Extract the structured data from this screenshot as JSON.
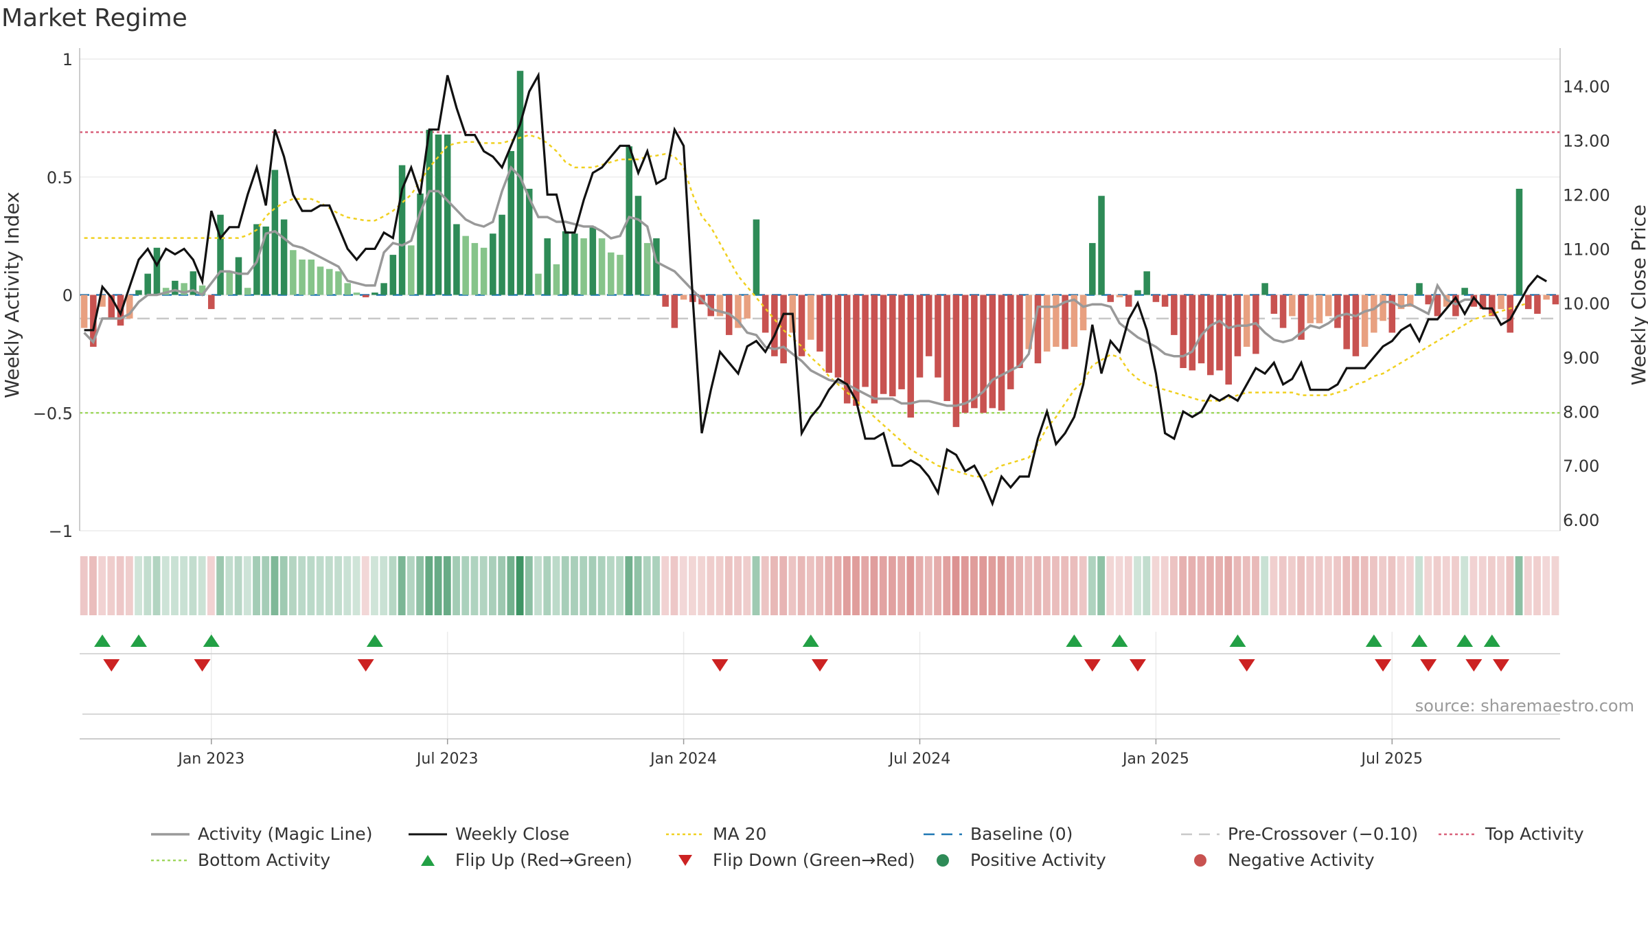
{
  "chart_title": "Market Regime",
  "source_text": "source: sharemaestro.com",
  "colors": {
    "green_strong": "#2e8b57",
    "green_light": "#86c48a",
    "red_strong": "#c85250",
    "red_light": "#e8a080",
    "magic_line": "#999999",
    "close_line": "#111111",
    "ma20": "#f0d020",
    "baseline": "#1f77b4",
    "precross": "#c8c8c8",
    "top_activity": "#d9607a",
    "bottom_activity": "#a0d860",
    "flip_up": "#22a045",
    "flip_down": "#cc2222"
  },
  "chart_data": {
    "type": "bar",
    "title": "Market Regime",
    "left_axis": {
      "label": "Weekly Activity Index",
      "range": [
        -1,
        1
      ],
      "ticks": [
        "1",
        "0.5",
        "0",
        "−0.5",
        "−1"
      ],
      "tick_values": [
        1,
        0.5,
        0,
        -0.5,
        -1
      ]
    },
    "right_axis": {
      "label": "Weekly Close Price",
      "range": [
        5.8,
        14.5
      ],
      "ticks": [
        "14.00",
        "13.00",
        "12.00",
        "11.00",
        "10.00",
        "9.00",
        "8.00",
        "7.00",
        "6.00"
      ],
      "tick_values": [
        14,
        13,
        12,
        11,
        10,
        9,
        8,
        7,
        6
      ]
    },
    "x_ticks": [
      "Jan 2023",
      "Jul 2023",
      "Jan 2024",
      "Jul 2024",
      "Jan 2025",
      "Jul 2025"
    ],
    "x_tick_weeks": [
      14,
      40,
      66,
      92,
      118,
      144
    ],
    "reference_lines": {
      "baseline": 0,
      "pre_crossover": -0.1,
      "top_activity": 0.69,
      "bottom_activity": -0.5
    },
    "grid": true,
    "legend_position": "bottom",
    "activity": [
      -0.14,
      -0.22,
      -0.05,
      -0.1,
      -0.13,
      -0.1,
      0.02,
      0.09,
      0.2,
      0.03,
      0.06,
      0.05,
      0.1,
      0.04,
      -0.06,
      0.34,
      0.1,
      0.16,
      0.03,
      0.3,
      0.29,
      0.53,
      0.32,
      0.19,
      0.15,
      0.15,
      0.12,
      0.11,
      0.1,
      0.05,
      0.01,
      -0.01,
      0.01,
      0.05,
      0.17,
      0.55,
      0.21,
      0.43,
      0.7,
      0.68,
      0.68,
      0.3,
      0.25,
      0.22,
      0.2,
      0.26,
      0.34,
      0.61,
      0.95,
      0.45,
      0.09,
      0.24,
      0.13,
      0.27,
      0.26,
      0.24,
      0.29,
      0.24,
      0.18,
      0.17,
      0.63,
      0.42,
      0.22,
      0.24,
      -0.05,
      -0.14,
      -0.02,
      -0.03,
      -0.04,
      -0.09,
      -0.09,
      -0.17,
      -0.14,
      -0.1,
      0.32,
      -0.16,
      -0.26,
      -0.29,
      -0.16,
      -0.26,
      -0.19,
      -0.24,
      -0.33,
      -0.35,
      -0.46,
      -0.47,
      -0.39,
      -0.46,
      -0.42,
      -0.43,
      -0.4,
      -0.52,
      -0.35,
      -0.26,
      -0.35,
      -0.45,
      -0.56,
      -0.5,
      -0.48,
      -0.5,
      -0.48,
      -0.49,
      -0.4,
      -0.31,
      -0.23,
      -0.29,
      -0.24,
      -0.22,
      -0.23,
      -0.22,
      -0.15,
      0.22,
      0.42,
      -0.03,
      -0.01,
      -0.05,
      0.02,
      0.1,
      -0.03,
      -0.05,
      -0.17,
      -0.31,
      -0.32,
      -0.29,
      -0.34,
      -0.32,
      -0.38,
      -0.26,
      -0.22,
      -0.25,
      0.05,
      -0.08,
      -0.14,
      -0.09,
      -0.19,
      -0.12,
      -0.12,
      -0.09,
      -0.14,
      -0.23,
      -0.26,
      -0.22,
      -0.16,
      -0.11,
      -0.16,
      -0.06,
      -0.05,
      0.05,
      -0.04,
      -0.09,
      -0.05,
      -0.09,
      0.03,
      -0.05,
      -0.06,
      -0.09,
      -0.06,
      -0.16,
      0.45,
      -0.06,
      -0.08,
      -0.02,
      -0.04
    ],
    "magic_line": [
      -0.16,
      -0.2,
      -0.1,
      -0.1,
      -0.1,
      -0.08,
      -0.03,
      0.0,
      0.0,
      0.01,
      0.02,
      0.01,
      0.02,
      0.0,
      0.05,
      0.1,
      0.1,
      0.09,
      0.09,
      0.14,
      0.26,
      0.27,
      0.24,
      0.21,
      0.2,
      0.18,
      0.16,
      0.14,
      0.12,
      0.06,
      0.05,
      0.04,
      0.04,
      0.18,
      0.22,
      0.21,
      0.23,
      0.35,
      0.44,
      0.44,
      0.4,
      0.36,
      0.32,
      0.3,
      0.29,
      0.31,
      0.44,
      0.54,
      0.5,
      0.41,
      0.33,
      0.33,
      0.31,
      0.31,
      0.3,
      0.29,
      0.29,
      0.27,
      0.24,
      0.25,
      0.33,
      0.32,
      0.29,
      0.14,
      0.12,
      0.1,
      0.06,
      0.02,
      -0.02,
      -0.06,
      -0.07,
      -0.08,
      -0.11,
      -0.16,
      -0.17,
      -0.22,
      -0.23,
      -0.22,
      -0.25,
      -0.28,
      -0.32,
      -0.34,
      -0.36,
      -0.37,
      -0.38,
      -0.4,
      -0.42,
      -0.44,
      -0.44,
      -0.44,
      -0.46,
      -0.46,
      -0.45,
      -0.45,
      -0.46,
      -0.47,
      -0.47,
      -0.46,
      -0.44,
      -0.41,
      -0.36,
      -0.34,
      -0.32,
      -0.3,
      -0.25,
      -0.05,
      -0.05,
      -0.05,
      -0.03,
      -0.02,
      -0.05,
      -0.04,
      -0.04,
      -0.05,
      -0.12,
      -0.15,
      -0.18,
      -0.2,
      -0.22,
      -0.25,
      -0.26,
      -0.26,
      -0.24,
      -0.17,
      -0.13,
      -0.11,
      -0.14,
      -0.13,
      -0.13,
      -0.12,
      -0.16,
      -0.19,
      -0.2,
      -0.19,
      -0.16,
      -0.13,
      -0.14,
      -0.12,
      -0.09,
      -0.08,
      -0.09,
      -0.07,
      -0.06,
      -0.03,
      -0.03,
      -0.05,
      -0.04,
      -0.06,
      -0.08,
      0.04,
      -0.02,
      -0.04,
      -0.02,
      -0.02
    ],
    "weekly_close": [
      9.5,
      9.5,
      10.3,
      10.1,
      9.8,
      10.3,
      10.8,
      11.0,
      10.7,
      11.0,
      10.9,
      11.0,
      10.8,
      10.4,
      11.7,
      11.2,
      11.4,
      11.4,
      12.0,
      12.5,
      11.8,
      13.2,
      12.7,
      12.0,
      11.7,
      11.7,
      11.8,
      11.8,
      11.4,
      11.0,
      10.8,
      11.0,
      11.0,
      11.3,
      11.2,
      12.1,
      12.5,
      12.0,
      13.2,
      13.2,
      14.2,
      13.6,
      13.1,
      13.1,
      12.8,
      12.7,
      12.5,
      12.9,
      13.3,
      13.9,
      14.2,
      12.0,
      12.0,
      11.3,
      11.3,
      11.9,
      12.4,
      12.5,
      12.7,
      12.9,
      12.9,
      12.4,
      12.8,
      12.2,
      12.3,
      13.2,
      12.9,
      10.1,
      7.6,
      8.4,
      9.1,
      8.9,
      8.7,
      9.2,
      9.3,
      9.1,
      9.4,
      9.8,
      9.8,
      7.6,
      7.9,
      8.1,
      8.4,
      8.6,
      8.5,
      8.2,
      7.5,
      7.5,
      7.6,
      7.0,
      7.0,
      7.1,
      7.0,
      6.8,
      6.5,
      7.3,
      7.2,
      6.9,
      7.0,
      6.7,
      6.3,
      6.8,
      6.6,
      6.8,
      6.8,
      7.5,
      8.0,
      7.4,
      7.6,
      7.9,
      8.5,
      9.6,
      8.7,
      9.3,
      9.1,
      9.7,
      10.0,
      9.5,
      8.7,
      7.6,
      7.5,
      8.0,
      7.9,
      8.0,
      8.3,
      8.2,
      8.3,
      8.2,
      8.5,
      8.8,
      8.7,
      8.9,
      8.5,
      8.6,
      8.9,
      8.4,
      8.4,
      8.4,
      8.5,
      8.8,
      8.8,
      8.8,
      9.0,
      9.2,
      9.3,
      9.5,
      9.6,
      9.3,
      9.7,
      9.7,
      9.9,
      10.1,
      9.8,
      10.1,
      9.9,
      9.9,
      9.6,
      9.7,
      10.0,
      10.3,
      10.5,
      10.4
    ],
    "ma20": [
      11.2,
      11.2,
      11.2,
      11.2,
      11.2,
      11.2,
      11.2,
      11.2,
      11.2,
      11.2,
      11.2,
      11.2,
      11.2,
      11.2,
      11.2,
      11.2,
      11.2,
      11.2,
      11.25,
      11.35,
      11.6,
      11.75,
      11.85,
      11.92,
      11.92,
      11.92,
      11.85,
      11.75,
      11.65,
      11.58,
      11.55,
      11.52,
      11.52,
      11.6,
      11.7,
      11.85,
      12.0,
      12.25,
      12.5,
      12.7,
      12.9,
      12.95,
      12.97,
      12.97,
      12.95,
      12.95,
      12.95,
      13.0,
      13.05,
      13.1,
      13.05,
      12.95,
      12.8,
      12.6,
      12.5,
      12.5,
      12.5,
      12.55,
      12.6,
      12.65,
      12.65,
      12.65,
      12.7,
      12.72,
      12.75,
      12.7,
      12.5,
      12.0,
      11.6,
      11.4,
      11.1,
      10.8,
      10.5,
      10.3,
      10.1,
      9.9,
      9.7,
      9.5,
      9.35,
      9.2,
      9.0,
      8.85,
      8.65,
      8.5,
      8.35,
      8.2,
      8.05,
      7.9,
      7.75,
      7.6,
      7.45,
      7.3,
      7.2,
      7.1,
      7.0,
      6.95,
      6.9,
      6.85,
      6.8,
      6.8,
      6.9,
      7.0,
      7.05,
      7.1,
      7.15,
      7.4,
      7.7,
      7.9,
      8.15,
      8.4,
      8.55,
      8.85,
      8.95,
      9.05,
      9.0,
      8.75,
      8.6,
      8.5,
      8.45,
      8.4,
      8.35,
      8.3,
      8.25,
      8.2,
      8.2,
      8.2,
      8.25,
      8.3,
      8.35,
      8.35,
      8.35,
      8.35,
      8.35,
      8.35,
      8.3,
      8.3,
      8.3,
      8.3,
      8.35,
      8.4,
      8.5,
      8.55,
      8.65,
      8.7,
      8.8,
      8.9,
      9.0,
      9.1,
      9.2,
      9.3,
      9.4,
      9.5,
      9.6,
      9.7,
      9.75,
      9.8,
      9.85,
      9.9,
      9.95,
      10.0
    ],
    "flip_up_weeks": [
      2,
      6,
      14,
      32,
      80,
      109,
      114,
      127,
      142,
      147,
      152,
      155
    ],
    "flip_down_weeks": [
      3,
      13,
      31,
      70,
      81,
      111,
      116,
      128,
      143,
      148,
      153,
      156
    ],
    "legend": [
      {
        "label": "Activity (Magic Line)",
        "symbol": "line-gray"
      },
      {
        "label": "Weekly Close",
        "symbol": "line-black"
      },
      {
        "label": "MA 20",
        "symbol": "dotted-yellow"
      },
      {
        "label": "Baseline (0)",
        "symbol": "dashed-blue"
      },
      {
        "label": "Pre-Crossover (−0.10)",
        "symbol": "dashed-gray"
      },
      {
        "label": "Top Activity",
        "symbol": "dotted-pink"
      },
      {
        "label": "Bottom Activity",
        "symbol": "dotted-green"
      },
      {
        "label": "Flip Up (Red→Green)",
        "symbol": "triangle-up-green"
      },
      {
        "label": "Flip Down (Green→Red)",
        "symbol": "triangle-down-red"
      },
      {
        "label": "Positive Activity",
        "symbol": "circle-green"
      },
      {
        "label": "Negative Activity",
        "symbol": "circle-red"
      }
    ]
  }
}
